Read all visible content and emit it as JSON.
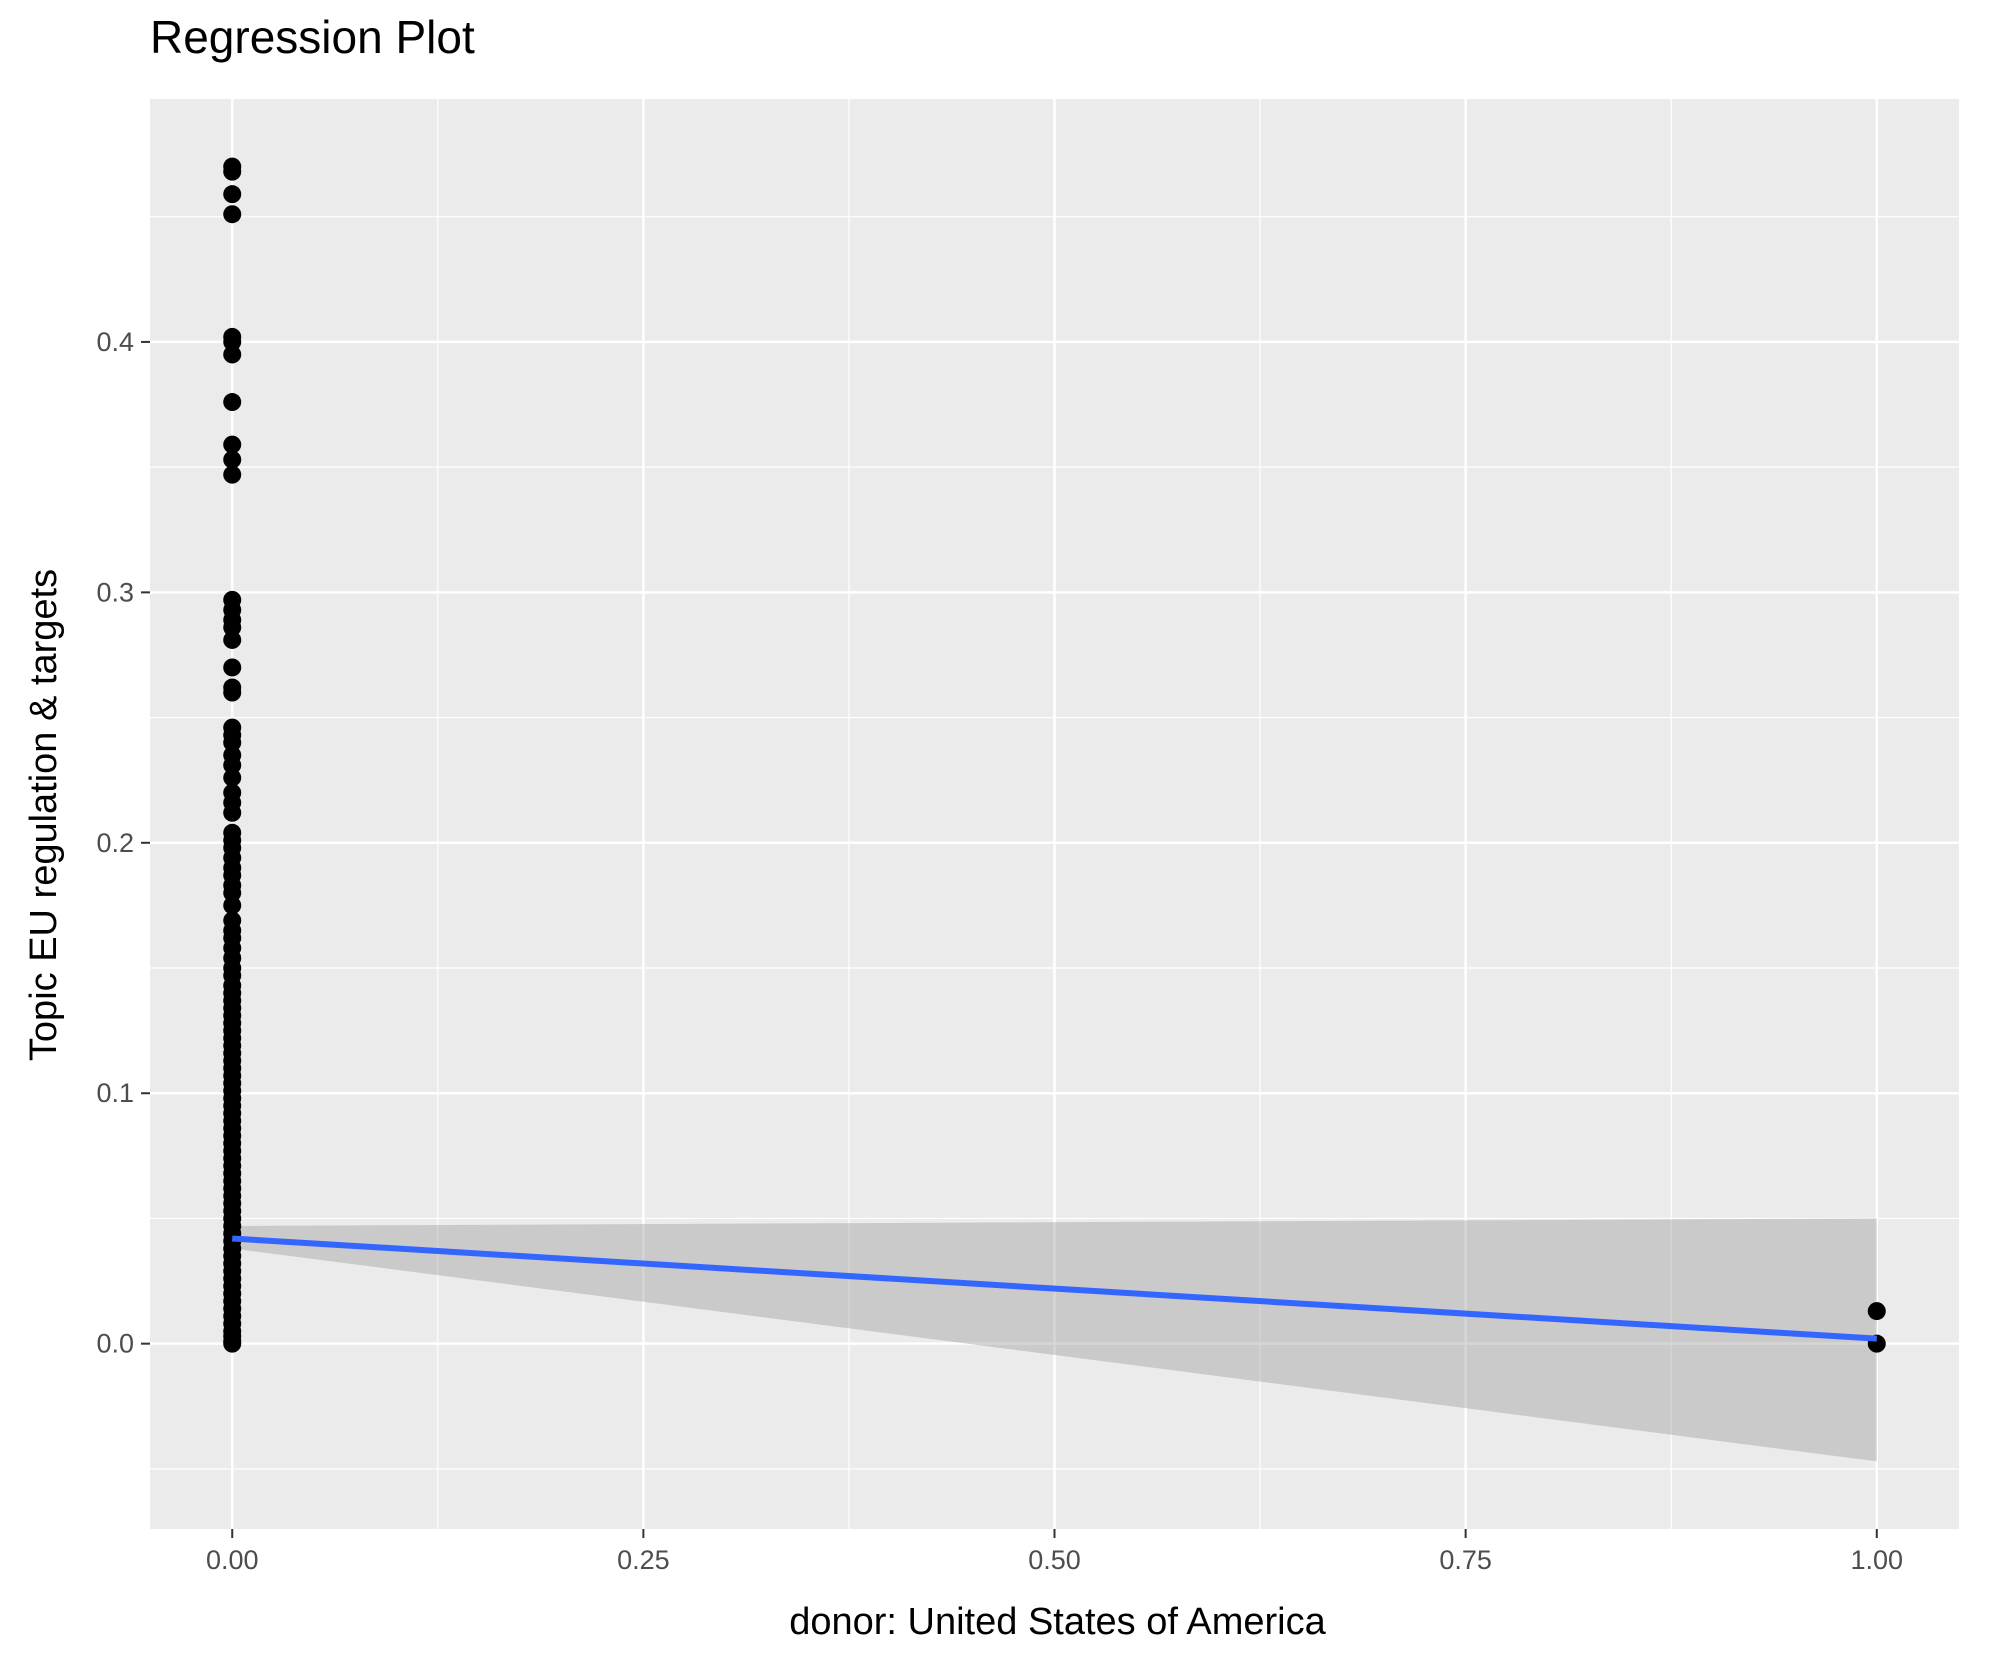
{
  "chart_data": {
    "type": "scatter",
    "title": "Regression Plot",
    "xlabel": "donor: United States of America",
    "ylabel": "Topic EU regulation & targets",
    "xlim": [
      -0.05,
      1.05
    ],
    "ylim": [
      -0.074,
      0.497
    ],
    "x_ticks": [
      "0.00",
      "0.25",
      "0.50",
      "0.75",
      "1.00"
    ],
    "x_tick_values": [
      0,
      0.25,
      0.5,
      0.75,
      1.0
    ],
    "y_ticks": [
      "0.0",
      "0.1",
      "0.2",
      "0.3",
      "0.4"
    ],
    "y_tick_values": [
      0,
      0.1,
      0.2,
      0.3,
      0.4
    ],
    "grid": true,
    "background": "#EBEBEB",
    "points": {
      "color": "#000000",
      "x0_values": [
        0.47,
        0.468,
        0.459,
        0.451,
        0.402,
        0.4,
        0.395,
        0.376,
        0.359,
        0.353,
        0.347,
        0.297,
        0.293,
        0.289,
        0.286,
        0.281,
        0.27,
        0.262,
        0.26,
        0.246,
        0.243,
        0.24,
        0.235,
        0.231,
        0.226,
        0.22,
        0.216,
        0.212,
        0.204,
        0.201,
        0.198,
        0.194,
        0.19,
        0.187,
        0.183,
        0.18,
        0.175,
        0.169,
        0.165,
        0.162,
        0.158,
        0.154,
        0.15,
        0.147,
        0.143,
        0.14,
        0.137,
        0.134,
        0.131,
        0.128,
        0.125,
        0.122,
        0.119,
        0.116,
        0.113,
        0.11,
        0.107,
        0.104,
        0.101,
        0.098,
        0.095,
        0.092,
        0.089,
        0.086,
        0.083,
        0.08,
        0.077,
        0.074,
        0.071,
        0.068,
        0.065,
        0.062,
        0.059,
        0.056,
        0.053,
        0.05,
        0.047,
        0.044,
        0.041,
        0.038,
        0.035,
        0.032,
        0.029,
        0.026,
        0.023,
        0.02,
        0.017,
        0.014,
        0.011,
        0.008,
        0.005,
        0.003,
        0.001,
        0.0
      ],
      "x1_values": [
        0.013,
        0.0
      ]
    },
    "regression": {
      "color": "#3366FF",
      "x": [
        0,
        1
      ],
      "y": [
        0.042,
        0.002
      ],
      "ci_color": "#999999",
      "ci_lower": [
        0.038,
        -0.047
      ],
      "ci_upper": [
        0.047,
        0.05
      ]
    }
  }
}
